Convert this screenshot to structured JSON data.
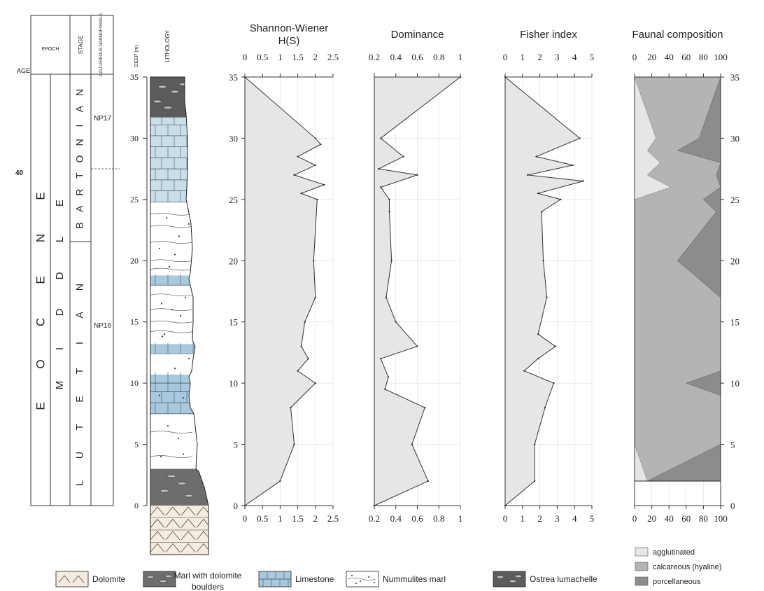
{
  "strat": {
    "age_label": "AGE",
    "epoch_header": "EPOCH",
    "stage_header": "STAGE",
    "nanno_header": "CALCAREOUS NANNOFOSSILS",
    "age_value": "40",
    "epoch_letters": [
      "E",
      "O",
      "C",
      "E",
      "N",
      "E"
    ],
    "subepoch_letters": [
      "M",
      "I",
      "D",
      "D",
      "L",
      "E"
    ],
    "stage_upper_letters": [
      "B",
      "A",
      "R",
      "T",
      "O",
      "N",
      "I",
      "A",
      "N"
    ],
    "stage_lower_letters": [
      "L",
      "U",
      "T",
      "E",
      "T",
      "I",
      "A",
      "N"
    ],
    "zone_upper": "NP17",
    "zone_lower": "NP16",
    "depth_axis_label": "DEEP (m)",
    "lithology_label": "LITHOLOGY",
    "depth_ticks": [
      "0",
      "5",
      "10",
      "15",
      "20",
      "25",
      "30",
      "35"
    ]
  },
  "legend": {
    "items": [
      {
        "label": "Dolomite",
        "pattern": "dolomite"
      },
      {
        "label": "Marl with dolomite boulders",
        "pattern": "marl"
      },
      {
        "label": "Limestone",
        "pattern": "limestone"
      },
      {
        "label": "Nummulites marl",
        "pattern": "nummulites"
      },
      {
        "label": "Ostrea lumachelle",
        "pattern": "ostrea"
      }
    ]
  },
  "faunal_legend": [
    {
      "label": "agglutinated",
      "color": "#e6e6e6"
    },
    {
      "label": "calcareous (hyaline)",
      "color": "#b4b4b4"
    },
    {
      "label": "porcellaneous",
      "color": "#8c8c8c"
    }
  ],
  "colors": {
    "fill_light": "#e6e6e6",
    "limestone": "#a9c8dc",
    "dark": "#555555"
  },
  "chart_data": [
    {
      "type": "area",
      "title": "Shannon-Wiener\nH(S)",
      "xlim": [
        0,
        2.5
      ],
      "xticks": [
        "0",
        "0.5",
        "1",
        "1.5",
        "2",
        "2.5"
      ],
      "ylim": [
        0,
        35
      ],
      "points": [
        [
          0,
          0
        ],
        [
          1,
          2
        ],
        [
          1.4,
          5
        ],
        [
          1.3,
          8
        ],
        [
          2,
          10
        ],
        [
          1.5,
          11
        ],
        [
          1.8,
          12
        ],
        [
          1.6,
          13
        ],
        [
          1.7,
          15
        ],
        [
          2,
          17
        ],
        [
          1.95,
          20
        ],
        [
          2.05,
          25
        ],
        [
          1.6,
          25.5
        ],
        [
          2.25,
          26.2
        ],
        [
          1.4,
          27
        ],
        [
          2,
          27.8
        ],
        [
          1.5,
          28.5
        ],
        [
          2.15,
          29.5
        ],
        [
          2,
          30
        ],
        [
          0,
          35
        ]
      ]
    },
    {
      "type": "area",
      "title": "Dominance",
      "xlim": [
        0.2,
        1
      ],
      "xticks": [
        "0.2",
        "0.4",
        "0.6",
        "0.8",
        "1"
      ],
      "ylim": [
        0,
        35
      ],
      "points": [
        [
          0.2,
          0
        ],
        [
          0.7,
          2
        ],
        [
          0.55,
          5
        ],
        [
          0.67,
          8
        ],
        [
          0.3,
          9.5
        ],
        [
          0.33,
          10.5
        ],
        [
          0.26,
          12
        ],
        [
          0.6,
          13
        ],
        [
          0.4,
          15
        ],
        [
          0.31,
          17
        ],
        [
          0.36,
          20
        ],
        [
          0.34,
          24
        ],
        [
          0.34,
          25
        ],
        [
          0.26,
          26
        ],
        [
          0.6,
          27
        ],
        [
          0.24,
          27.5
        ],
        [
          0.47,
          28.5
        ],
        [
          0.26,
          30
        ],
        [
          1,
          35
        ]
      ]
    },
    {
      "type": "area",
      "title": "Fisher index",
      "xlim": [
        0,
        5
      ],
      "xticks": [
        "0",
        "1",
        "2",
        "3",
        "4",
        "5"
      ],
      "ylim": [
        0,
        35
      ],
      "points": [
        [
          0,
          0
        ],
        [
          1.7,
          2
        ],
        [
          1.7,
          5
        ],
        [
          2.3,
          8
        ],
        [
          2.8,
          10
        ],
        [
          1.1,
          11
        ],
        [
          1.9,
          12
        ],
        [
          2.9,
          13
        ],
        [
          1.9,
          14
        ],
        [
          2.4,
          17
        ],
        [
          2.2,
          20
        ],
        [
          2.1,
          24
        ],
        [
          3.2,
          25
        ],
        [
          1.9,
          25.5
        ],
        [
          4.5,
          26.5
        ],
        [
          1.3,
          27
        ],
        [
          3.9,
          27.8
        ],
        [
          1.8,
          28.5
        ],
        [
          4.3,
          30
        ],
        [
          0,
          35
        ]
      ]
    },
    {
      "type": "area",
      "stacked": true,
      "title": "Faunal composition",
      "xlim": [
        0,
        100
      ],
      "xticks": [
        "0",
        "20",
        "40",
        "60",
        "80",
        "100"
      ],
      "ylim": [
        0,
        35
      ],
      "series": [
        {
          "name": "agglutinated",
          "boundary": [
            [
              15,
              2
            ],
            [
              0,
              5
            ],
            [
              0,
              25
            ],
            [
              42,
              26
            ],
            [
              15,
              27
            ],
            [
              30,
              28
            ],
            [
              15,
              29
            ],
            [
              25,
              30
            ],
            [
              0,
              35
            ]
          ]
        },
        {
          "name": "calcareous (hyaline)",
          "boundary": [
            [
              15,
              2
            ],
            [
              100,
              5
            ],
            [
              100,
              9
            ],
            [
              60,
              10
            ],
            [
              100,
              11
            ],
            [
              100,
              17
            ],
            [
              50,
              20
            ],
            [
              95,
              24
            ],
            [
              80,
              25
            ],
            [
              100,
              26
            ],
            [
              95,
              27
            ],
            [
              100,
              28
            ],
            [
              50,
              29
            ],
            [
              75,
              30
            ],
            [
              100,
              35
            ]
          ]
        },
        {
          "name": "porcellaneous",
          "boundary": [
            [
              100,
              2
            ],
            [
              100,
              35
            ]
          ]
        }
      ]
    }
  ]
}
